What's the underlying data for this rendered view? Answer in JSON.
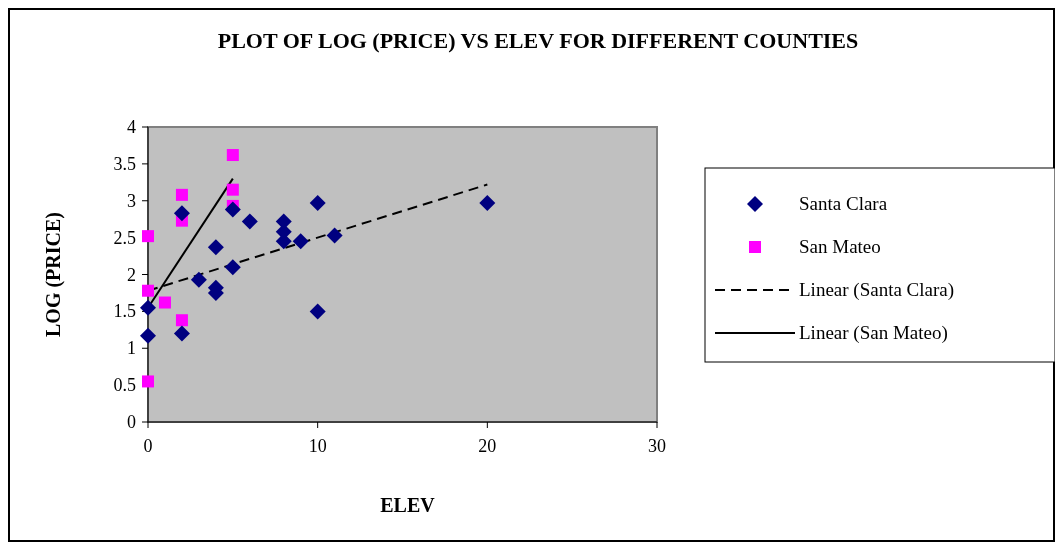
{
  "chart_data": {
    "type": "scatter",
    "title": "PLOT OF LOG (PRICE) VS ELEV FOR DIFFERENT COUNTIES",
    "xlabel": "ELEV",
    "ylabel": "LOG (PRICE)",
    "xlim": [
      0,
      30
    ],
    "xticks": [
      0,
      10,
      20,
      30
    ],
    "ylim": [
      0,
      4
    ],
    "yticks": [
      0,
      0.5,
      1,
      1.5,
      2,
      2.5,
      3,
      3.5,
      4
    ],
    "grid": false,
    "legend": "right",
    "series": [
      {
        "name": "Santa Clara",
        "color": "#000080",
        "marker": "diamond",
        "x": [
          0,
          0,
          2,
          2,
          3,
          4,
          4,
          4,
          5,
          5,
          6,
          8,
          8,
          8,
          9,
          10,
          10,
          11,
          20
        ],
        "values": [
          1.55,
          1.17,
          2.83,
          1.2,
          1.93,
          2.37,
          1.82,
          1.75,
          2.88,
          2.1,
          2.72,
          2.72,
          2.58,
          2.45,
          2.45,
          2.97,
          1.5,
          2.53,
          2.97
        ]
      },
      {
        "name": "San Mateo",
        "color": "#ff00ff",
        "marker": "square",
        "x": [
          0,
          0,
          0,
          1,
          2,
          2,
          2,
          5,
          5,
          5
        ],
        "values": [
          2.52,
          1.78,
          0.55,
          1.62,
          3.08,
          2.73,
          1.38,
          3.62,
          3.15,
          2.93
        ]
      },
      {
        "name": "Linear (Santa Clara)",
        "type": "line",
        "color": "#000000",
        "line_style": "dashed",
        "x": [
          0,
          20
        ],
        "values": [
          1.78,
          3.22
        ]
      },
      {
        "name": "Linear (San Mateo)",
        "type": "line",
        "color": "#000000",
        "line_style": "solid",
        "x": [
          0,
          5
        ],
        "values": [
          1.55,
          3.3
        ]
      }
    ]
  }
}
